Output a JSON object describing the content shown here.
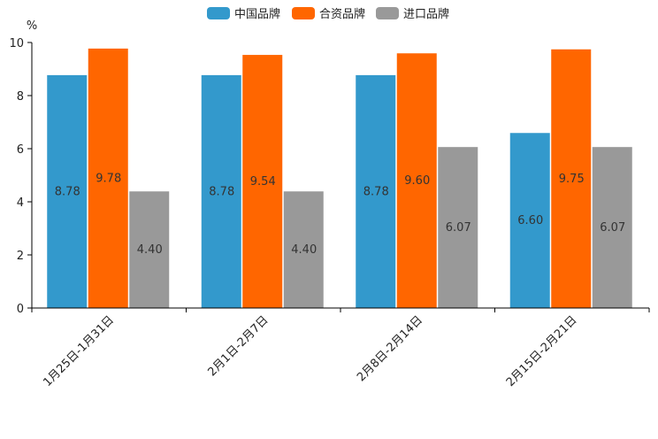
{
  "chart_data": {
    "type": "bar",
    "title": "",
    "xlabel": "",
    "ylabel": "%",
    "ylim": [
      0,
      10
    ],
    "yticks": [
      0,
      2,
      4,
      6,
      8,
      10
    ],
    "grid": false,
    "legend_position": "top-center",
    "categories": [
      "1月25日-1月31日",
      "2月1日-2月7日",
      "2月8日-2月14日",
      "2月15日-2月21日"
    ],
    "series": [
      {
        "name": "中国品牌",
        "color": "#3399cc",
        "values": [
          8.78,
          8.78,
          8.78,
          6.6
        ],
        "labels": [
          "8.78",
          "8.78",
          "8.78",
          "6.60"
        ]
      },
      {
        "name": "合资品牌",
        "color": "#ff6600",
        "values": [
          9.78,
          9.54,
          9.6,
          9.75
        ],
        "labels": [
          "9.78",
          "9.54",
          "9.60",
          "9.75"
        ]
      },
      {
        "name": "进口品牌",
        "color": "#999999",
        "values": [
          4.4,
          4.4,
          6.07,
          6.07
        ],
        "labels": [
          "4.40",
          "4.40",
          "6.07",
          "6.07"
        ]
      }
    ]
  }
}
